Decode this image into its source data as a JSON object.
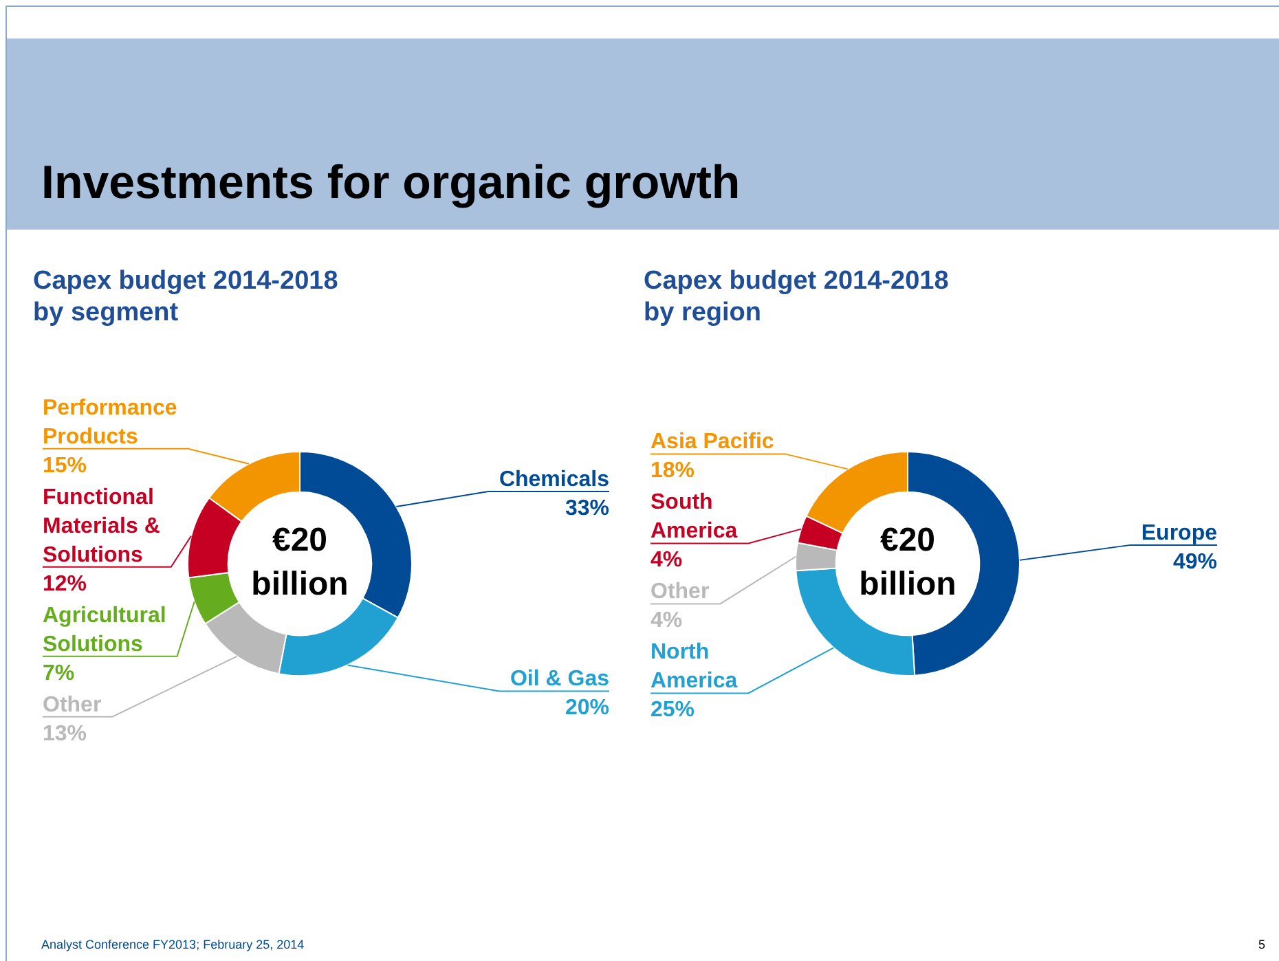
{
  "chart_data": [
    {
      "type": "other",
      "title": "Investments for organic growth",
      "annotations": [
        "Analyst Conference FY2013;  February 25, 2014",
        "5"
      ]
    },
    {
      "type": "donut",
      "title": "Capex budget 2014-2018 by segment",
      "categories": [
        "Chemicals",
        "Oil  & Gas",
        "Other",
        "Agricultural Solutions",
        "Functional Materials & Solutions",
        "Performance Products"
      ],
      "values": [
        33,
        20,
        13,
        7,
        12,
        15
      ],
      "colors": [
        "#004a96",
        "#21a0d2",
        "#b9b9b9",
        "#65ac1e",
        "#c50022",
        "#f39500"
      ],
      "value_labels": [
        "33%",
        "20%",
        "13%",
        "7%",
        "12%",
        "15%"
      ],
      "annotations": [
        "€20 billion"
      ]
    },
    {
      "type": "donut",
      "title": "Capex budget 2014-2018 by region",
      "categories": [
        "Europe",
        "North America",
        "Other",
        "South America",
        "Asia Pacific"
      ],
      "values": [
        49,
        25,
        4,
        4,
        18
      ],
      "colors": [
        "#004a96",
        "#21a0d2",
        "#b9b9b9",
        "#c50022",
        "#f39500"
      ],
      "value_labels": [
        "49%",
        "25%",
        "4%",
        "4%",
        "18%"
      ],
      "annotations": [
        "€20 billion"
      ]
    }
  ]
}
